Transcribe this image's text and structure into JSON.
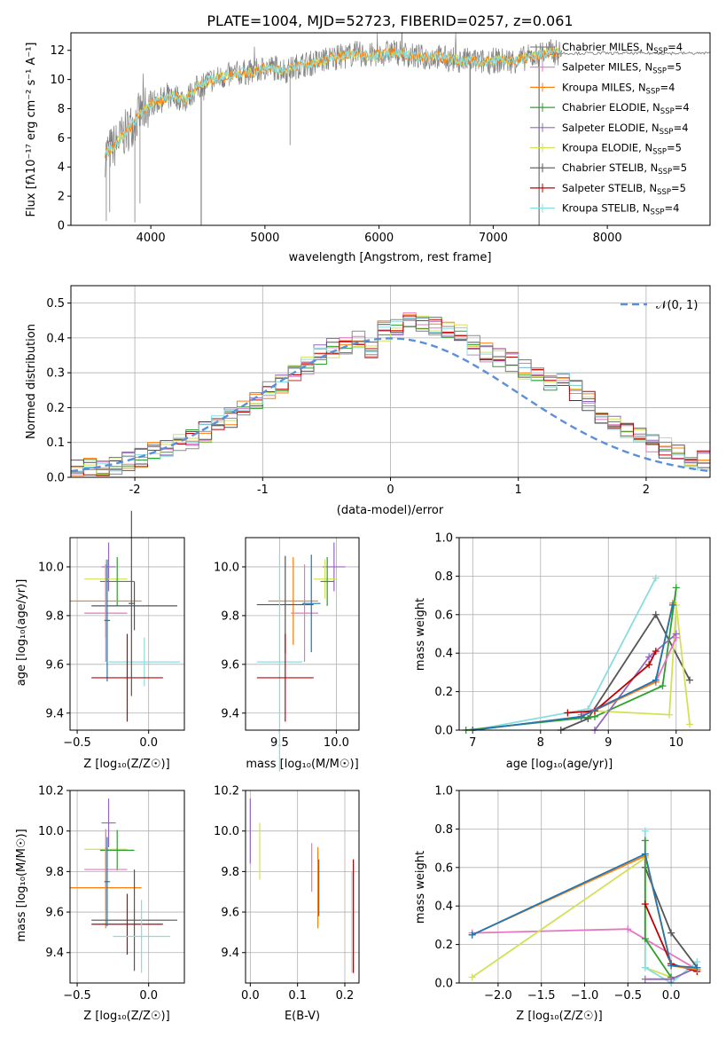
{
  "colors": [
    "#e377c2",
    "#1f77b4",
    "#ff7f0e",
    "#2ca02c",
    "#9467bd",
    "#d4e157",
    "#555555",
    "#c00000",
    "#88dde0"
  ],
  "chart_data": [
    {
      "id": "spectrum",
      "type": "line",
      "title": "PLATE=1004, MJD=52723, FIBERID=0257, z=0.061",
      "xlabel": "wavelength [Angstrom, rest frame]",
      "ylabel": "Flux [fλ10⁻¹⁷ erg cm⁻² s⁻¹ A⁻¹]",
      "xlim": [
        3300,
        8900
      ],
      "ylim": [
        0,
        13.2
      ],
      "xticks": [
        4000,
        5000,
        6000,
        7000,
        8000
      ],
      "yticks": [
        0,
        2,
        4,
        6,
        8,
        10,
        12
      ],
      "legend_position": "right",
      "legend": [
        {
          "name": "Chabrier MILES, N",
          "sub": "SSP",
          "suffix": "=4",
          "color": "#8a8a8a"
        },
        {
          "name": "Salpeter MILES, N",
          "sub": "SSP",
          "suffix": "=5",
          "color": "#e377c2"
        },
        {
          "name": "Kroupa MILES, N",
          "sub": "SSP",
          "suffix": "=4",
          "color": "#ff7f0e"
        },
        {
          "name": "Chabrier ELODIE, N",
          "sub": "SSP",
          "suffix": "=4",
          "color": "#2ca02c"
        },
        {
          "name": "Salpeter ELODIE, N",
          "sub": "SSP",
          "suffix": "=4",
          "color": "#9467bd"
        },
        {
          "name": "Kroupa ELODIE, N",
          "sub": "SSP",
          "suffix": "=5",
          "color": "#d4e157"
        },
        {
          "name": "Chabrier STELIB, N",
          "sub": "SSP",
          "suffix": "=5",
          "color": "#555555"
        },
        {
          "name": "Salpeter STELIB, N",
          "sub": "SSP",
          "suffix": "=5",
          "color": "#c00000"
        },
        {
          "name": "Kroupa STELIB, N",
          "sub": "SSP",
          "suffix": "=4",
          "color": "#88dde0"
        }
      ],
      "continuum": [
        [
          3600,
          4.9
        ],
        [
          3700,
          5.6
        ],
        [
          3800,
          6.6
        ],
        [
          3900,
          7.6
        ],
        [
          4000,
          8.4
        ],
        [
          4100,
          8.6
        ],
        [
          4200,
          8.9
        ],
        [
          4300,
          8.6
        ],
        [
          4400,
          9.4
        ],
        [
          4500,
          9.9
        ],
        [
          4600,
          10.1
        ],
        [
          4700,
          10.3
        ],
        [
          4800,
          10.5
        ],
        [
          4900,
          10.5
        ],
        [
          5000,
          10.8
        ],
        [
          5100,
          10.8
        ],
        [
          5200,
          10.6
        ],
        [
          5300,
          11.0
        ],
        [
          5400,
          11.1
        ],
        [
          5500,
          11.3
        ],
        [
          5600,
          11.5
        ],
        [
          5700,
          11.6
        ],
        [
          5800,
          11.8
        ],
        [
          5900,
          11.6
        ],
        [
          6000,
          11.7
        ],
        [
          6100,
          11.9
        ],
        [
          6200,
          11.8
        ],
        [
          6300,
          11.6
        ],
        [
          6400,
          11.5
        ],
        [
          6500,
          11.6
        ],
        [
          6600,
          11.4
        ],
        [
          6700,
          11.3
        ],
        [
          6800,
          11.3
        ],
        [
          6900,
          11.2
        ],
        [
          7000,
          11.3
        ],
        [
          7100,
          11.3
        ],
        [
          7200,
          11.3
        ],
        [
          7300,
          11.5
        ],
        [
          7400,
          11.7
        ],
        [
          7500,
          11.9
        ],
        [
          7600,
          11.8
        ]
      ]
    },
    {
      "id": "residuals",
      "type": "bar",
      "xlabel": "(data-model)/error",
      "ylabel": "Normed distribution",
      "xlim": [
        -2.5,
        2.5
      ],
      "ylim": [
        0,
        0.55
      ],
      "xticks": [
        -2,
        -1,
        0,
        1,
        2
      ],
      "yticks": [
        0.0,
        0.1,
        0.2,
        0.3,
        0.4,
        0.5
      ],
      "legend_position": "top-right",
      "gaussian_label": "𝒩(0, 1)",
      "bin_edges_start": -2.5,
      "bin_width": 0.1,
      "base_values": [
        0.02,
        0.025,
        0.03,
        0.035,
        0.045,
        0.055,
        0.07,
        0.08,
        0.095,
        0.11,
        0.13,
        0.15,
        0.17,
        0.2,
        0.22,
        0.25,
        0.27,
        0.3,
        0.32,
        0.35,
        0.37,
        0.38,
        0.39,
        0.37,
        0.42,
        0.43,
        0.45,
        0.44,
        0.43,
        0.42,
        0.41,
        0.38,
        0.36,
        0.34,
        0.33,
        0.31,
        0.29,
        0.27,
        0.27,
        0.25,
        0.22,
        0.18,
        0.16,
        0.14,
        0.12,
        0.1,
        0.085,
        0.075,
        0.06,
        0.05,
        0.04,
        0.03,
        0.025,
        0.02
      ]
    },
    {
      "id": "age-vs-Z",
      "type": "scatter",
      "xlabel": "Z [log₁₀(Z/Z☉)]",
      "ylabel": "age  [log₁₀(age/yr)]",
      "xlim": [
        -0.55,
        0.25
      ],
      "ylim": [
        9.33,
        10.12
      ],
      "xticks": [
        -0.5,
        0.0
      ],
      "xticklabels": [
        "−0.5",
        "0.0"
      ],
      "yticks": [
        9.4,
        9.6,
        9.8,
        10.0
      ],
      "points": [
        {
          "x": -0.28,
          "y": 10.0,
          "xerr": 0.05,
          "yerr": 0.1,
          "c": 4
        },
        {
          "x": -0.3,
          "y": 9.95,
          "xerr": 0.15,
          "yerr": 0.08,
          "c": 5
        },
        {
          "x": -0.22,
          "y": 9.94,
          "xerr": 0.12,
          "yerr": 0.1,
          "c": 3
        },
        {
          "x": -0.3,
          "y": 9.86,
          "xerr": 0.25,
          "yerr": 0.15,
          "c": 2
        },
        {
          "x": -0.1,
          "y": 9.84,
          "xerr": 0.3,
          "yerr": 0.1,
          "c": 6
        },
        {
          "x": -0.3,
          "y": 9.81,
          "xerr": 0.15,
          "yerr": 0.2,
          "c": 0
        },
        {
          "x": -0.29,
          "y": 9.78,
          "xerr": 0.02,
          "yerr": 0.25,
          "c": 1
        },
        {
          "x": -0.03,
          "y": 9.61,
          "xerr": 0.25,
          "yerr": 0.1,
          "c": 8
        },
        {
          "x": -0.15,
          "y": 9.545,
          "xerr": 0.25,
          "yerr": 0.18,
          "c": 7
        },
        {
          "x": -0.12,
          "y": 9.85,
          "xerr": 0.02,
          "yerr": 0.38,
          "c": 6
        }
      ]
    },
    {
      "id": "age-vs-mass",
      "type": "scatter",
      "xlabel": "mass [log₁₀(M/M☉)]",
      "ylabel": "",
      "xlim": [
        9.2,
        10.2
      ],
      "ylim": [
        9.33,
        10.12
      ],
      "xticks": [
        9.5,
        10.0
      ],
      "xticklabels": [
        "9.5",
        "10.0"
      ],
      "yticks": [
        9.4,
        9.6,
        9.8,
        10.0
      ],
      "points": [
        {
          "x": 9.98,
          "y": 10.0,
          "xerr": 0.1,
          "yerr": 0.1,
          "c": 4
        },
        {
          "x": 9.9,
          "y": 9.95,
          "xerr": 0.1,
          "yerr": 0.08,
          "c": 5
        },
        {
          "x": 9.92,
          "y": 9.94,
          "xerr": 0.06,
          "yerr": 0.1,
          "c": 3
        },
        {
          "x": 9.62,
          "y": 9.86,
          "xerr": 0.22,
          "yerr": 0.18,
          "c": 2
        },
        {
          "x": 9.55,
          "y": 9.845,
          "xerr": 0.25,
          "yerr": 0.2,
          "c": 6
        },
        {
          "x": 9.72,
          "y": 9.81,
          "xerr": 0.12,
          "yerr": 0.2,
          "c": 0
        },
        {
          "x": 9.5,
          "y": 9.61,
          "xerr": 0.2,
          "yerr": 0.45,
          "c": 8
        },
        {
          "x": 9.55,
          "y": 9.545,
          "xerr": 0.25,
          "yerr": 0.18,
          "c": 7
        },
        {
          "x": 9.78,
          "y": 9.85,
          "xerr": 0.08,
          "yerr": 0.2,
          "c": 1
        }
      ]
    },
    {
      "id": "weight-vs-age",
      "type": "line",
      "xlabel": "age  [log₁₀(age/yr)]",
      "ylabel": "mass weight",
      "xlim": [
        6.8,
        10.5
      ],
      "ylim": [
        0,
        1.0
      ],
      "xticks": [
        7,
        8,
        9,
        10
      ],
      "yticks": [
        0.0,
        0.2,
        0.4,
        0.6,
        0.8,
        1.0
      ],
      "series": [
        {
          "c": 8,
          "x": [
            7.0,
            8.7,
            9.7
          ],
          "y": [
            0.0,
            0.11,
            0.79
          ]
        },
        {
          "c": 6,
          "x": [
            8.3,
            8.7,
            9.7,
            10.2
          ],
          "y": [
            0.0,
            0.06,
            0.6,
            0.26
          ]
        },
        {
          "c": 3,
          "x": [
            6.9,
            8.8,
            9.8,
            10.0
          ],
          "y": [
            0.0,
            0.07,
            0.23,
            0.74
          ]
        },
        {
          "c": 5,
          "x": [
            8.8,
            9.9,
            10.0,
            10.2
          ],
          "y": [
            0.1,
            0.08,
            0.65,
            0.03
          ]
        },
        {
          "c": 0,
          "x": [
            8.6,
            9.7,
            10.0
          ],
          "y": [
            0.08,
            0.25,
            0.48
          ]
        },
        {
          "c": 4,
          "x": [
            8.8,
            9.6,
            10.0
          ],
          "y": [
            0.0,
            0.38,
            0.5
          ]
        },
        {
          "c": 7,
          "x": [
            8.4,
            8.8,
            9.6,
            9.7
          ],
          "y": [
            0.09,
            0.1,
            0.34,
            0.41
          ]
        },
        {
          "c": 2,
          "x": [
            7.0,
            8.6,
            9.7,
            9.95
          ],
          "y": [
            0.0,
            0.07,
            0.25,
            0.66
          ]
        },
        {
          "c": 1,
          "x": [
            7.0,
            8.6,
            9.7,
            9.95
          ],
          "y": [
            0.0,
            0.07,
            0.26,
            0.65
          ]
        }
      ]
    },
    {
      "id": "mass-vs-Z",
      "type": "scatter",
      "xlabel": "Z [log₁₀(Z/Z☉)]",
      "ylabel": "mass [log₁₀(M/M☉)]",
      "xlim": [
        -0.55,
        0.25
      ],
      "ylim": [
        9.25,
        10.2
      ],
      "xticks": [
        -0.5,
        0.0
      ],
      "xticklabels": [
        "−0.5",
        "0.0"
      ],
      "yticks": [
        9.4,
        9.6,
        9.8,
        10.0,
        10.2
      ],
      "points": [
        {
          "x": -0.28,
          "y": 10.04,
          "xerr": 0.05,
          "yerr": 0.12,
          "c": 4
        },
        {
          "x": -0.3,
          "y": 9.91,
          "xerr": 0.15,
          "yerr": 0.08,
          "c": 5
        },
        {
          "x": -0.22,
          "y": 9.905,
          "xerr": 0.12,
          "yerr": 0.1,
          "c": 3
        },
        {
          "x": -0.3,
          "y": 9.81,
          "xerr": 0.15,
          "yerr": 0.2,
          "c": 0
        },
        {
          "x": -0.3,
          "y": 9.72,
          "xerr": 0.25,
          "yerr": 0.2,
          "c": 2
        },
        {
          "x": -0.1,
          "y": 9.56,
          "xerr": 0.3,
          "yerr": 0.25,
          "c": 6
        },
        {
          "x": -0.15,
          "y": 9.54,
          "xerr": 0.25,
          "yerr": 0.15,
          "c": 7
        },
        {
          "x": -0.05,
          "y": 9.48,
          "xerr": 0.2,
          "yerr": 0.18,
          "c": 8
        },
        {
          "x": -0.29,
          "y": 9.75,
          "xerr": 0.02,
          "yerr": 0.22,
          "c": 1
        }
      ]
    },
    {
      "id": "mass-vs-ebv",
      "type": "scatter",
      "xlabel": "E(B-V)",
      "ylabel": "",
      "xlim": [
        -0.01,
        0.23
      ],
      "ylim": [
        9.25,
        10.2
      ],
      "xticks": [
        0.0,
        0.1,
        0.2
      ],
      "xticklabels": [
        "0.0",
        "0.1",
        "0.2"
      ],
      "yticks": [
        9.4,
        9.6,
        9.8,
        10.0,
        10.2
      ],
      "points": [
        {
          "x": 0.0,
          "y": 10.0,
          "xerr": 0,
          "yerr": 0.16,
          "c": 4
        },
        {
          "x": 0.02,
          "y": 9.9,
          "xerr": 0,
          "yerr": 0.14,
          "c": 5
        },
        {
          "x": 0.13,
          "y": 9.82,
          "xerr": 0,
          "yerr": 0.12,
          "c": 0
        },
        {
          "x": 0.143,
          "y": 9.72,
          "xerr": 0,
          "yerr": 0.2,
          "c": 2
        },
        {
          "x": 0.145,
          "y": 9.72,
          "xerr": 0,
          "yerr": 0.14,
          "c": 1
        },
        {
          "x": 0.218,
          "y": 9.58,
          "xerr": 0,
          "yerr": 0.28,
          "c": 7
        },
        {
          "x": 0.215,
          "y": 9.55,
          "xerr": 0,
          "yerr": 0.25,
          "c": 8
        }
      ]
    },
    {
      "id": "weight-vs-Z",
      "type": "line",
      "xlabel": "Z [log₁₀(Z/Z☉)]",
      "ylabel": "mass weight",
      "xlim": [
        -2.45,
        0.45
      ],
      "ylim": [
        0,
        1.0
      ],
      "xticks": [
        -2.0,
        -1.5,
        -1.0,
        -0.5,
        0.0
      ],
      "xticklabels": [
        "−2.0",
        "−1.5",
        "−1.0",
        "−0.5",
        "0.0"
      ],
      "yticks": [
        0.0,
        0.2,
        0.4,
        0.6,
        0.8,
        1.0
      ],
      "series": [
        {
          "c": 0,
          "x": [
            -2.3,
            -0.5,
            0.3
          ],
          "y": [
            0.26,
            0.28,
            0.07
          ]
        },
        {
          "c": 5,
          "x": [
            -2.3,
            -0.3,
            -0.3,
            0.0
          ],
          "y": [
            0.03,
            0.65,
            0.08,
            0.03
          ]
        },
        {
          "c": 8,
          "x": [
            -0.3,
            -0.3,
            0.0,
            0.3
          ],
          "y": [
            0.79,
            0.08,
            0.0,
            0.11
          ]
        },
        {
          "c": 6,
          "x": [
            -0.3,
            0.0,
            0.3
          ],
          "y": [
            0.6,
            0.26,
            0.08
          ]
        },
        {
          "c": 3,
          "x": [
            -0.3,
            -0.3,
            0.0
          ],
          "y": [
            0.74,
            0.23,
            0.03
          ]
        },
        {
          "c": 4,
          "x": [
            -0.3,
            0.0,
            0.3
          ],
          "y": [
            0.02,
            0.02,
            0.08
          ]
        },
        {
          "c": 7,
          "x": [
            -0.3,
            0.0,
            0.3
          ],
          "y": [
            0.41,
            0.1,
            0.06
          ]
        },
        {
          "c": 2,
          "x": [
            -2.3,
            -0.3,
            0.0,
            0.3
          ],
          "y": [
            0.25,
            0.66,
            0.09,
            0.07
          ]
        },
        {
          "c": 1,
          "x": [
            -2.3,
            -0.3,
            0.0,
            0.3
          ],
          "y": [
            0.25,
            0.67,
            0.09,
            0.08
          ]
        }
      ]
    }
  ]
}
